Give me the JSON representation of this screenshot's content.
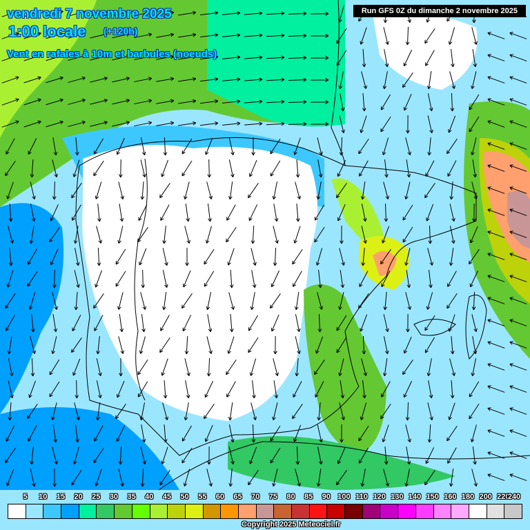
{
  "header": {
    "date": "vendredi 7 novembre 2025",
    "hour": "1:00 locale",
    "lead": "(+120h)",
    "parameter": "Vent en rafales à 10m et barbules (noeuds)",
    "run": "Run GFS 0Z du dimanche 2 novembre 2025"
  },
  "legend": {
    "labels": [
      "5",
      "10",
      "15",
      "20",
      "25",
      "30",
      "35",
      "40",
      "45",
      "50",
      "55",
      "60",
      "65",
      "70",
      "75",
      "80",
      "85",
      "90",
      "100",
      "110",
      "120",
      "130",
      "140",
      "150",
      "160",
      "180",
      "200",
      "220",
      "240"
    ],
    "colors": [
      "#ffffff",
      "#9be6ff",
      "#3cc8ff",
      "#00a0ff",
      "#00f0a0",
      "#32c864",
      "#64c832",
      "#64ff00",
      "#aaf032",
      "#bed20a",
      "#dcf014",
      "#d29600",
      "#ff9600",
      "#ffa06e",
      "#c89696",
      "#c86432",
      "#c83232",
      "#ff1414",
      "#c80000",
      "#780000",
      "#a00078",
      "#c800c8",
      "#ff00ff",
      "#ff3cff",
      "#ff82ff",
      "#ffaaff",
      "#ffffff",
      "#e1e1e1",
      "#c8c8c8"
    ]
  },
  "copyright": "Copyright 2025 Meteociel.fr"
}
